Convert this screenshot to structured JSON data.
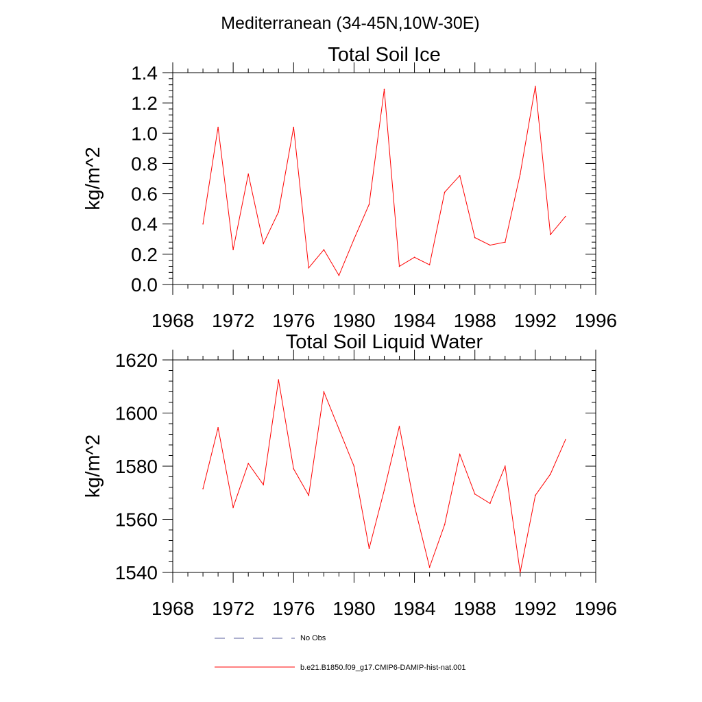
{
  "page_title": "Mediterranean (34-45N,10W-30E)",
  "legend": {
    "entries": [
      {
        "label": "No Obs",
        "style": "dashed",
        "color": "#5a5f9e"
      },
      {
        "label": "b.e21.B1850.f09_g17.CMIP6-DAMIP-hist-nat.001",
        "style": "solid",
        "color": "#ff0000"
      }
    ]
  },
  "chart_data": [
    {
      "type": "line",
      "title": "Total Soil Ice",
      "xlabel": "",
      "ylabel": "kg/m^2",
      "xlim": [
        1968,
        1996
      ],
      "ylim": [
        0,
        1.4
      ],
      "xticks": [
        1968,
        1972,
        1976,
        1980,
        1984,
        1988,
        1992,
        1996
      ],
      "yticks": [
        0.0,
        0.2,
        0.4,
        0.6,
        0.8,
        1.0,
        1.2,
        1.4
      ],
      "ytick_labels": [
        "0.0",
        "0.2",
        "0.4",
        "0.6",
        "0.8",
        "1.0",
        "1.2",
        "1.4"
      ],
      "grid": false,
      "series": [
        {
          "name": "b.e21.B1850.f09_g17.CMIP6-DAMIP-hist-nat.001",
          "color": "#ff0000",
          "x": [
            1970,
            1971,
            1972,
            1973,
            1974,
            1975,
            1976,
            1977,
            1978,
            1979,
            1980,
            1981,
            1982,
            1983,
            1984,
            1985,
            1986,
            1987,
            1988,
            1989,
            1990,
            1991,
            1992,
            1993,
            1994
          ],
          "y": [
            0.4,
            1.04,
            0.23,
            0.73,
            0.27,
            0.48,
            1.04,
            0.11,
            0.23,
            0.06,
            0.3,
            0.53,
            1.29,
            0.12,
            0.18,
            0.13,
            0.61,
            0.72,
            0.31,
            0.26,
            0.28,
            0.73,
            1.31,
            0.33,
            0.45
          ]
        }
      ]
    },
    {
      "type": "line",
      "title": "Total Soil Liquid Water",
      "xlabel": "",
      "ylabel": "kg/m^2",
      "xlim": [
        1968,
        1996
      ],
      "ylim": [
        1540,
        1620
      ],
      "xticks": [
        1968,
        1972,
        1976,
        1980,
        1984,
        1988,
        1992,
        1996
      ],
      "yticks": [
        1540,
        1560,
        1580,
        1600,
        1620
      ],
      "ytick_labels": [
        "1540",
        "1560",
        "1580",
        "1600",
        "1620"
      ],
      "grid": false,
      "series": [
        {
          "name": "b.e21.B1850.f09_g17.CMIP6-DAMIP-hist-nat.001",
          "color": "#ff0000",
          "x": [
            1970,
            1971,
            1972,
            1973,
            1974,
            1975,
            1976,
            1977,
            1978,
            1979,
            1980,
            1981,
            1982,
            1983,
            1984,
            1985,
            1986,
            1987,
            1988,
            1989,
            1990,
            1991,
            1992,
            1993,
            1994
          ],
          "y": [
            1571.5,
            1594.5,
            1564.5,
            1581,
            1573,
            1612.5,
            1579,
            1569,
            1608,
            1594,
            1580,
            1549,
            1571,
            1595,
            1565,
            1542,
            1558,
            1584.5,
            1569.5,
            1566,
            1580,
            1540,
            1569,
            1577,
            1590
          ]
        }
      ]
    }
  ]
}
